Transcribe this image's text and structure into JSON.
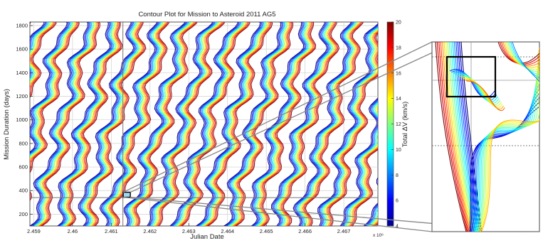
{
  "chart_data": {
    "type": "contour",
    "title": "Contour Plot for Mission to Asteroid 2011 AG5",
    "xlabel": "Julian Date",
    "ylabel": "Mission Duration (days)",
    "x_multiplier_label": "x 10⁶",
    "x_ticks": [
      2.459,
      2.46,
      2.461,
      2.462,
      2.463,
      2.464,
      2.465,
      2.466,
      2.467
    ],
    "x_tick_labels": [
      "2.459",
      "2.46",
      "2.461",
      "2.462",
      "2.463",
      "2.464",
      "2.465",
      "2.466",
      "2.467"
    ],
    "xlim": [
      2.4589,
      2.46788
    ],
    "y_ticks": [
      200,
      400,
      600,
      800,
      1000,
      1200,
      1400,
      1600,
      1800
    ],
    "y_tick_labels": [
      "200",
      "400",
      "600",
      "800",
      "1000",
      "1200",
      "1400",
      "1600",
      "1800"
    ],
    "ylim": [
      100,
      1830
    ],
    "grid": true,
    "colorbar": {
      "label": "Total ΔV (km/s)",
      "range": [
        4,
        20
      ],
      "ticks": [
        4,
        6,
        8,
        10,
        12,
        14,
        16,
        18,
        20
      ],
      "tick_labels": [
        "4",
        "6",
        "8",
        "10",
        "12",
        "14",
        "16",
        "18",
        "20"
      ],
      "colormap": "jet"
    },
    "crosshair": {
      "x": 2.4613,
      "y": 340
    },
    "highlight_box": {
      "x": 2.4614,
      "y": 365
    },
    "inset": {
      "type": "zoomed-contour",
      "zoom_box": true
    }
  }
}
